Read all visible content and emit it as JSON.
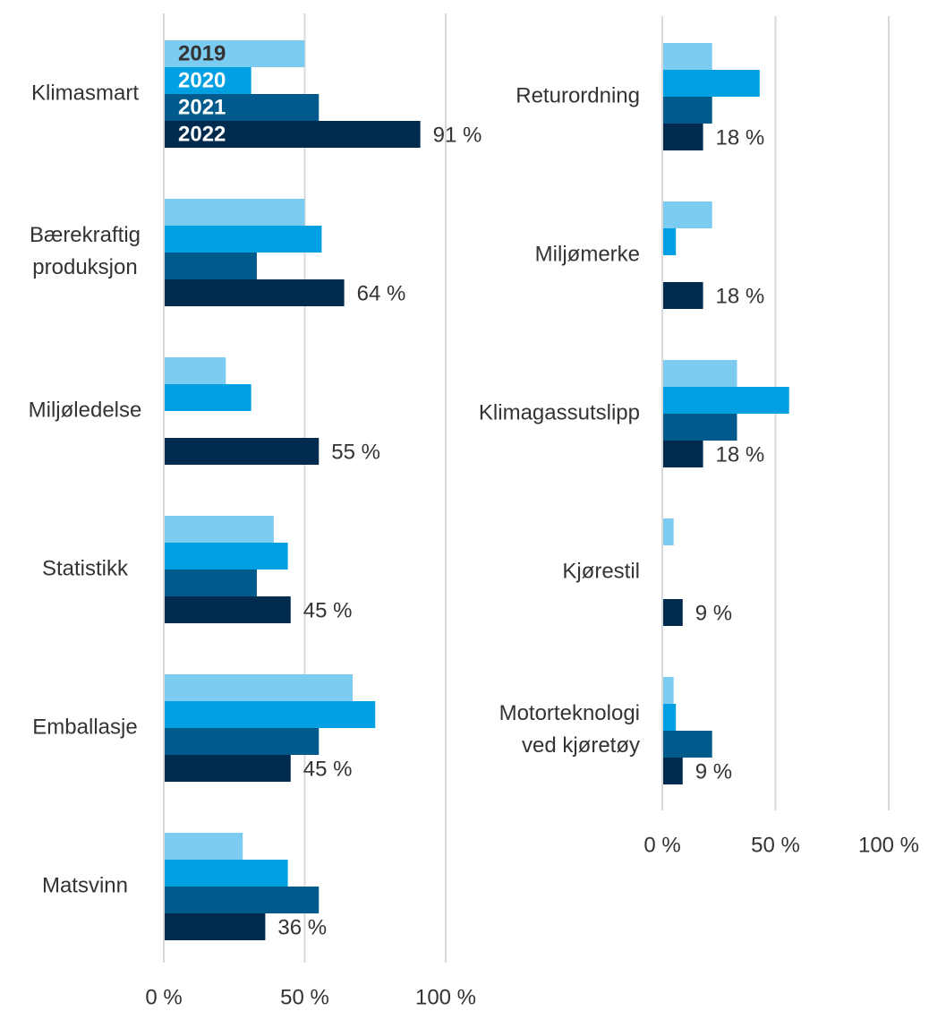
{
  "chart_data": [
    {
      "type": "bar",
      "orientation": "horizontal",
      "categories": [
        "Klimasmart",
        "Bærekraftig\nproduksjon",
        "Miljøledelse",
        "Statistikk",
        "Emballasje",
        "Matsvinn"
      ],
      "series": [
        {
          "name": "2019",
          "color": "#7ccbf0",
          "values": [
            50,
            50,
            22,
            39,
            67,
            28
          ]
        },
        {
          "name": "2020",
          "color": "#00a0e3",
          "values": [
            31,
            56,
            31,
            44,
            75,
            44
          ]
        },
        {
          "name": "2021",
          "color": "#005a8c",
          "values": [
            55,
            33,
            null,
            33,
            55,
            55
          ]
        },
        {
          "name": "2022",
          "color": "#002a4e",
          "values": [
            91,
            64,
            55,
            45,
            45,
            36
          ],
          "value_labels": [
            "91 %",
            "64 %",
            "55 %",
            "45 %",
            "45 %",
            "36 %"
          ]
        }
      ],
      "xlim": [
        0,
        100
      ],
      "xticks": [
        {
          "value": 0,
          "label": "0 %"
        },
        {
          "value": 50,
          "label": "50 %"
        },
        {
          "value": 100,
          "label": "100 %"
        }
      ],
      "grid": true,
      "legend": "inside-bars"
    },
    {
      "type": "bar",
      "orientation": "horizontal",
      "categories": [
        "Returordning",
        "Miljømerke",
        "Klimagassutslipp",
        "Kjørestil",
        "Motorteknologi\nved kjøretøy"
      ],
      "series": [
        {
          "color": "#7ccbf0",
          "values": [
            22,
            22,
            33,
            5,
            5
          ]
        },
        {
          "color": "#00a0e3",
          "values": [
            43,
            6,
            56,
            null,
            6
          ]
        },
        {
          "color": "#005a8c",
          "values": [
            22,
            null,
            33,
            null,
            22
          ]
        },
        {
          "color": "#002a4e",
          "values": [
            18,
            18,
            18,
            9,
            9
          ],
          "value_labels": [
            "18 %",
            "18 %",
            "18 %",
            "9 %",
            "9 %"
          ]
        }
      ],
      "xlim": [
        0,
        100
      ],
      "xticks": [
        {
          "value": 0,
          "label": "0 %"
        },
        {
          "value": 50,
          "label": "50 %"
        },
        {
          "value": 100,
          "label": "100 %"
        }
      ],
      "grid": true
    }
  ]
}
